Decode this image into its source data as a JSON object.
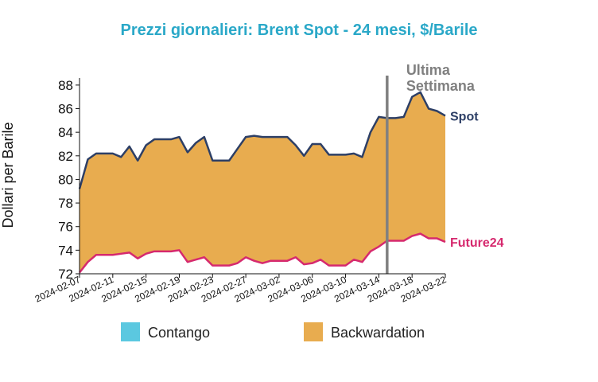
{
  "chart_data": {
    "type": "spread-area",
    "title": "Prezzi giornalieri: Brent Spot - 24 mesi, $/Barile",
    "y_label": "Dollari per Barile",
    "x": [
      "2024-02-07",
      "2024-02-08",
      "2024-02-09",
      "2024-02-10",
      "2024-02-11",
      "2024-02-12",
      "2024-02-13",
      "2024-02-14",
      "2024-02-15",
      "2024-02-16",
      "2024-02-17",
      "2024-02-18",
      "2024-02-19",
      "2024-02-20",
      "2024-02-21",
      "2024-02-22",
      "2024-02-23",
      "2024-02-24",
      "2024-02-25",
      "2024-02-26",
      "2024-02-27",
      "2024-02-28",
      "2024-02-29",
      "2024-03-01",
      "2024-03-02",
      "2024-03-03",
      "2024-03-04",
      "2024-03-05",
      "2024-03-06",
      "2024-03-07",
      "2024-03-08",
      "2024-03-09",
      "2024-03-10",
      "2024-03-11",
      "2024-03-12",
      "2024-03-13",
      "2024-03-14",
      "2024-03-15",
      "2024-03-16",
      "2024-03-17",
      "2024-03-18",
      "2024-03-19",
      "2024-03-20",
      "2024-03-21",
      "2024-03-22"
    ],
    "series": [
      {
        "name": "Spot",
        "color": "#2d3f66",
        "values": [
          79.2,
          81.7,
          82.2,
          82.2,
          82.2,
          81.9,
          82.8,
          81.6,
          82.9,
          83.4,
          83.4,
          83.4,
          83.6,
          82.3,
          83.1,
          83.6,
          81.6,
          81.6,
          81.6,
          82.6,
          83.6,
          83.7,
          83.6,
          83.6,
          83.6,
          83.6,
          82.9,
          82.0,
          83.0,
          83.0,
          82.1,
          82.1,
          82.1,
          82.2,
          81.9,
          84.0,
          85.3,
          85.2,
          85.2,
          85.3,
          87.0,
          87.4,
          86.0,
          85.8,
          85.4
        ]
      },
      {
        "name": "Future24",
        "color": "#d6296e",
        "values": [
          72.1,
          73.0,
          73.6,
          73.6,
          73.6,
          73.7,
          73.8,
          73.3,
          73.7,
          73.9,
          73.9,
          73.9,
          74.0,
          73.0,
          73.2,
          73.4,
          72.7,
          72.7,
          72.7,
          72.9,
          73.4,
          73.1,
          72.9,
          73.1,
          73.1,
          73.1,
          73.4,
          72.8,
          72.9,
          73.2,
          72.7,
          72.7,
          72.7,
          73.2,
          73.0,
          73.9,
          74.3,
          74.8,
          74.8,
          74.8,
          75.2,
          75.4,
          75.0,
          75.0,
          74.7
        ]
      }
    ],
    "fill_legend": [
      {
        "name": "Contango",
        "color": "#5bc8e0"
      },
      {
        "name": "Backwardation",
        "color": "#e8ac4f"
      }
    ],
    "xlim": [
      "2024-02-07",
      "2024-03-22"
    ],
    "xticks": [
      "2024-02-07",
      "2024-02-11",
      "2024-02-15",
      "2024-02-19",
      "2024-02-23",
      "2024-02-27",
      "2024-03-02",
      "2024-03-06",
      "2024-03-10",
      "2024-03-14",
      "2024-03-18",
      "2024-03-22"
    ],
    "ylim": [
      72,
      88.6
    ],
    "yticks": [
      72,
      74,
      76,
      78,
      80,
      82,
      84,
      86,
      88
    ],
    "annotation": {
      "x": "2024-03-15",
      "lines": [
        "Ultima",
        "Settimana"
      ],
      "color": "#808080"
    }
  }
}
